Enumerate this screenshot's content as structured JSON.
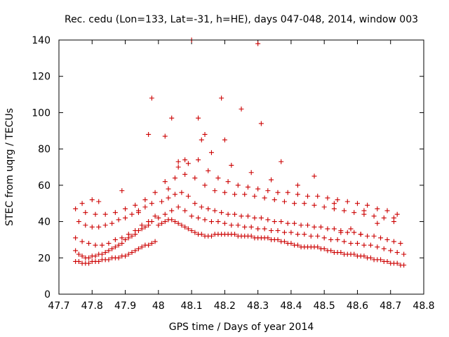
{
  "chart_data": {
    "type": "scatter",
    "title": "Rec. cedu (Lon=133, Lat=-31, h=HE), days 047-048, 2014, window 003",
    "xlabel": "GPS time / Days of year 2014",
    "ylabel": "STEC from uqrg / TECUs",
    "xlim": [
      47.7,
      48.8
    ],
    "ylim": [
      0,
      140
    ],
    "xticks": [
      "47.7",
      "47.8",
      "47.9",
      "48",
      "48.1",
      "48.2",
      "48.3",
      "48.4",
      "48.5",
      "48.6",
      "48.7",
      "48.8"
    ],
    "yticks": [
      "0",
      "20",
      "40",
      "60",
      "80",
      "100",
      "120",
      "140"
    ],
    "grid": false,
    "legend": "none",
    "marker": "plus",
    "color": "#cc0000",
    "series": [
      {
        "x": [
          47.75,
          47.76,
          47.77,
          47.78,
          47.79,
          47.8,
          47.81,
          47.82,
          47.83,
          47.84,
          47.85,
          47.86,
          47.87,
          47.88,
          47.89,
          47.9,
          47.91,
          47.92,
          47.93,
          47.94,
          47.95,
          47.96,
          47.97,
          47.98,
          47.99,
          47.75,
          47.76,
          47.77,
          47.78,
          47.79,
          47.8,
          47.81,
          47.82,
          47.83,
          47.84,
          47.85,
          47.86,
          47.87,
          47.88,
          47.89,
          47.9,
          47.91,
          47.92,
          47.93,
          47.94,
          47.95,
          47.96,
          47.97,
          47.98,
          47.75,
          47.77,
          47.79,
          47.81,
          47.83,
          47.85,
          47.87,
          47.89,
          47.91,
          47.93,
          47.95,
          47.97,
          47.99,
          47.76,
          47.78,
          47.8,
          47.82,
          47.84,
          47.86,
          47.88,
          47.9,
          47.92,
          47.94,
          47.96,
          47.98,
          47.75,
          47.78,
          47.81,
          47.84,
          47.87,
          47.9,
          47.93,
          47.96,
          47.99,
          48.0,
          48.01,
          48.02,
          48.03,
          48.04,
          48.05,
          48.06,
          48.07,
          48.08,
          48.09,
          48.1,
          48.11,
          48.12,
          48.13,
          48.14,
          48.15,
          48.16,
          48.17,
          48.18,
          48.19,
          48.2,
          48.21,
          48.22,
          48.23,
          48.24,
          48.25,
          48.26,
          48.27,
          48.28,
          48.29,
          48.3,
          48.31,
          48.32,
          48.33,
          48.34,
          48.35,
          48.36,
          48.37,
          48.38,
          48.39,
          48.4,
          48.41,
          48.42,
          48.43,
          48.44,
          48.45,
          48.46,
          48.47,
          48.48,
          48.49,
          48.5,
          48.51,
          48.52,
          48.53,
          48.54,
          48.55,
          48.56,
          48.57,
          48.58,
          48.59,
          48.6,
          48.61,
          48.62,
          48.63,
          48.64,
          48.65,
          48.66,
          48.67,
          48.68,
          48.69,
          48.7,
          48.71,
          48.72,
          48.73,
          48.74,
          48.0,
          48.02,
          48.04,
          48.06,
          48.08,
          48.1,
          48.12,
          48.14,
          48.16,
          48.18,
          48.2,
          48.22,
          48.24,
          48.26,
          48.28,
          48.3,
          48.32,
          48.34,
          48.36,
          48.38,
          48.4,
          48.42,
          48.44,
          48.46,
          48.48,
          48.5,
          48.52,
          48.54,
          48.56,
          48.58,
          48.6,
          48.62,
          48.64,
          48.66,
          48.68,
          48.7,
          48.72,
          48.74,
          48.01,
          48.03,
          48.05,
          48.07,
          48.09,
          48.11,
          48.13,
          48.15,
          48.17,
          48.19,
          48.21,
          48.23,
          48.25,
          48.27,
          48.29,
          48.31,
          48.33,
          48.35,
          48.37,
          48.39,
          48.41,
          48.43,
          48.45,
          48.47,
          48.49,
          48.51,
          48.53,
          48.55,
          48.57,
          48.59,
          48.61,
          48.63,
          48.65,
          48.67,
          48.69,
          48.71,
          48.73,
          48.02,
          48.05,
          48.08,
          48.11,
          48.14,
          48.17,
          48.2,
          48.23,
          48.26,
          48.29,
          48.32,
          48.35,
          48.38,
          48.41,
          48.44,
          48.47,
          48.5,
          48.53,
          48.56,
          48.59,
          48.62,
          48.65,
          48.68,
          48.71,
          48.03,
          48.06,
          48.09,
          48.12,
          48.15,
          48.18,
          48.21,
          48.24,
          48.27,
          48.3,
          48.33,
          48.36,
          48.39,
          48.42,
          48.45,
          48.48,
          48.51,
          48.54,
          48.57,
          48.6,
          48.63,
          48.66,
          48.69,
          48.72,
          47.98,
          48.02,
          48.06,
          48.1,
          48.14,
          48.19,
          48.25,
          48.3,
          48.31,
          48.37,
          48.12,
          48.2,
          47.97,
          48.04,
          48.08,
          48.13,
          48.16,
          48.22,
          48.28,
          48.34,
          48.42,
          48.47,
          48.53,
          48.62,
          47.94,
          47.89,
          47.82,
          47.8,
          47.77,
          48.71,
          48.66,
          48.58,
          48.55,
          48.61
        ],
        "y": [
          18,
          18,
          17,
          17,
          17,
          18,
          18,
          18,
          19,
          19,
          19,
          20,
          20,
          20,
          21,
          21,
          22,
          23,
          24,
          25,
          26,
          27,
          27,
          28,
          29,
          24,
          22,
          21,
          20,
          20,
          21,
          21,
          22,
          22,
          23,
          24,
          25,
          26,
          27,
          28,
          30,
          31,
          32,
          33,
          35,
          36,
          37,
          38,
          40,
          31,
          29,
          28,
          27,
          27,
          28,
          30,
          31,
          33,
          35,
          38,
          40,
          43,
          40,
          38,
          37,
          37,
          38,
          39,
          41,
          42,
          44,
          46,
          48,
          50,
          47,
          45,
          44,
          44,
          45,
          47,
          49,
          52,
          56,
          38,
          39,
          40,
          41,
          41,
          40,
          39,
          38,
          37,
          36,
          35,
          34,
          33,
          33,
          32,
          32,
          32,
          33,
          33,
          33,
          33,
          33,
          33,
          33,
          32,
          32,
          32,
          32,
          32,
          31,
          31,
          31,
          31,
          31,
          30,
          30,
          30,
          29,
          29,
          28,
          28,
          27,
          27,
          26,
          26,
          26,
          26,
          26,
          26,
          25,
          25,
          24,
          24,
          23,
          23,
          23,
          22,
          22,
          22,
          22,
          21,
          21,
          21,
          20,
          20,
          19,
          19,
          19,
          18,
          18,
          17,
          17,
          17,
          16,
          16,
          42,
          44,
          46,
          48,
          46,
          43,
          42,
          41,
          40,
          40,
          39,
          38,
          38,
          37,
          37,
          36,
          36,
          35,
          35,
          34,
          34,
          33,
          33,
          32,
          32,
          31,
          30,
          30,
          29,
          28,
          28,
          27,
          27,
          26,
          25,
          24,
          23,
          22,
          51,
          53,
          55,
          56,
          54,
          50,
          48,
          47,
          46,
          45,
          44,
          44,
          43,
          43,
          42,
          42,
          41,
          40,
          40,
          39,
          39,
          38,
          38,
          37,
          37,
          36,
          36,
          35,
          34,
          34,
          33,
          32,
          32,
          31,
          30,
          29,
          28,
          62,
          64,
          66,
          64,
          60,
          57,
          56,
          55,
          55,
          54,
          53,
          52,
          51,
          50,
          50,
          49,
          48,
          47,
          46,
          45,
          44,
          43,
          42,
          40,
          58,
          70,
          72,
          74,
          68,
          64,
          62,
          60,
          59,
          58,
          57,
          56,
          56,
          55,
          54,
          54,
          53,
          52,
          51,
          50,
          49,
          47,
          46,
          44,
          108,
          87,
          73,
          140,
          88,
          108,
          102,
          138,
          94,
          73,
          97,
          85,
          88,
          97,
          74,
          85,
          78,
          71,
          67,
          63,
          60,
          65,
          50,
          46,
          45,
          57,
          51,
          52,
          50,
          42,
          39,
          36,
          34,
          33
        ]
      }
    ]
  }
}
